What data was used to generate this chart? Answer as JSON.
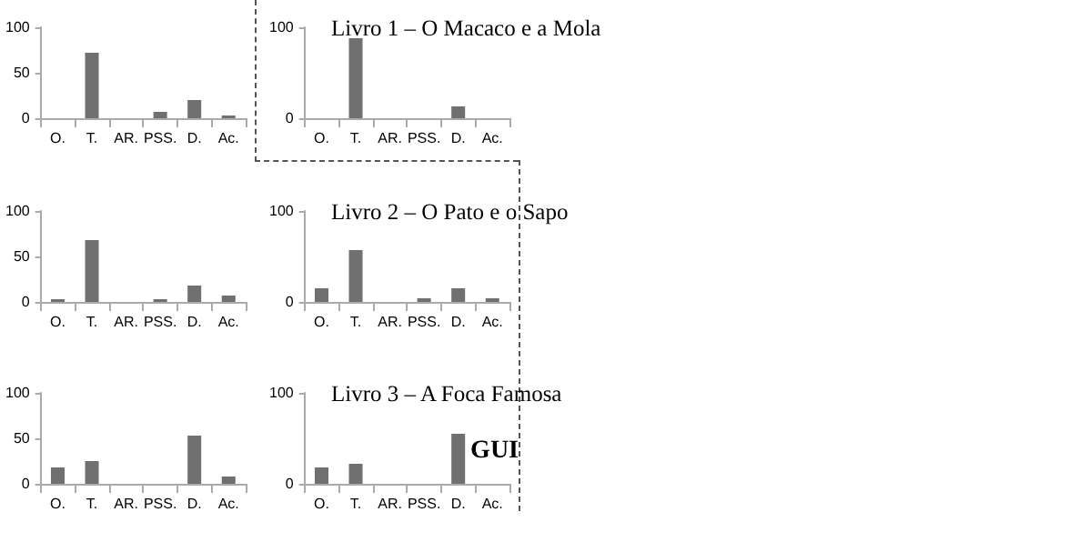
{
  "chart_data": [
    {
      "type": "bar",
      "categories": [
        "O.",
        "T.",
        "AR.",
        "PSS.",
        "D.",
        "Ac."
      ],
      "values": [
        0,
        72,
        0,
        7,
        20,
        3
      ],
      "color": "#707070",
      "ylim": [
        0,
        100
      ],
      "yticks": [
        0,
        50,
        100
      ],
      "grid": false
    },
    {
      "type": "bar",
      "title": "Livro 1 – O Macaco e a Mola",
      "categories": [
        "O.",
        "T.",
        "AR.",
        "PSS.",
        "D.",
        "Ac."
      ],
      "values": [
        0,
        88,
        0,
        0,
        13,
        0
      ],
      "color": "#707070",
      "ylim": [
        0,
        100
      ],
      "yticks": [
        0,
        100
      ],
      "grid": false
    },
    {
      "type": "bar",
      "categories": [
        "O.",
        "T.",
        "AR.",
        "PSS.",
        "D.",
        "Ac."
      ],
      "values": [
        3,
        68,
        0,
        3,
        18,
        7
      ],
      "color": "#707070",
      "ylim": [
        0,
        100
      ],
      "yticks": [
        0,
        50,
        100
      ],
      "grid": false
    },
    {
      "type": "bar",
      "title": "Livro 2 – O Pato e o Sapo",
      "categories": [
        "O.",
        "T.",
        "AR.",
        "PSS.",
        "D.",
        "Ac."
      ],
      "values": [
        15,
        57,
        0,
        4,
        15,
        4
      ],
      "color": "#707070",
      "ylim": [
        0,
        100
      ],
      "yticks": [
        0,
        100
      ],
      "grid": false
    },
    {
      "type": "bar",
      "categories": [
        "O.",
        "T.",
        "AR.",
        "PSS.",
        "D.",
        "Ac."
      ],
      "values": [
        18,
        25,
        0,
        0,
        53,
        8
      ],
      "color": "#707070",
      "ylim": [
        0,
        100
      ],
      "yticks": [
        0,
        50,
        100
      ],
      "grid": false
    },
    {
      "type": "bar",
      "title": "Livro 3 – A Foca Famosa",
      "categories": [
        "O.",
        "T.",
        "AR.",
        "PSS.",
        "D.",
        "Ac."
      ],
      "values": [
        18,
        22,
        0,
        0,
        55,
        0
      ],
      "color": "#707070",
      "ylim": [
        0,
        100
      ],
      "yticks": [
        0,
        100
      ],
      "grid": false,
      "annotations": [
        "GUI"
      ]
    }
  ]
}
